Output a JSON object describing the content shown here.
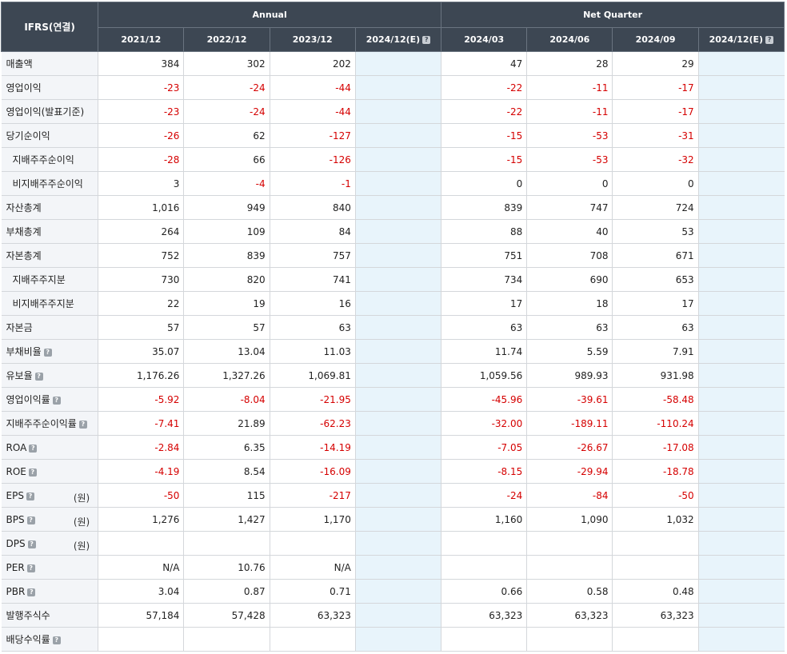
{
  "header": {
    "ifrs": "IFRS(연결)",
    "annual": "Annual",
    "quarter": "Net Quarter",
    "columns": [
      "2021/12",
      "2022/12",
      "2023/12",
      "2024/12(E)",
      "2024/03",
      "2024/06",
      "2024/09",
      "2024/12(E)"
    ]
  },
  "rows": [
    {
      "label": "매출액",
      "indent": false,
      "help": false,
      "unit": "",
      "values": [
        "384",
        "302",
        "202",
        "",
        "47",
        "28",
        "29",
        ""
      ]
    },
    {
      "label": "영업이익",
      "indent": false,
      "help": false,
      "unit": "",
      "values": [
        "-23",
        "-24",
        "-44",
        "",
        "-22",
        "-11",
        "-17",
        ""
      ]
    },
    {
      "label": "영업이익(발표기준)",
      "indent": false,
      "help": false,
      "unit": "",
      "values": [
        "-23",
        "-24",
        "-44",
        "",
        "-22",
        "-11",
        "-17",
        ""
      ]
    },
    {
      "label": "당기순이익",
      "indent": false,
      "help": false,
      "unit": "",
      "values": [
        "-26",
        "62",
        "-127",
        "",
        "-15",
        "-53",
        "-31",
        ""
      ]
    },
    {
      "label": "지배주주순이익",
      "indent": true,
      "help": false,
      "unit": "",
      "values": [
        "-28",
        "66",
        "-126",
        "",
        "-15",
        "-53",
        "-32",
        ""
      ]
    },
    {
      "label": "비지배주주순이익",
      "indent": true,
      "help": false,
      "unit": "",
      "values": [
        "3",
        "-4",
        "-1",
        "",
        "0",
        "0",
        "0",
        ""
      ]
    },
    {
      "label": "자산총계",
      "indent": false,
      "help": false,
      "unit": "",
      "values": [
        "1,016",
        "949",
        "840",
        "",
        "839",
        "747",
        "724",
        ""
      ]
    },
    {
      "label": "부채총계",
      "indent": false,
      "help": false,
      "unit": "",
      "values": [
        "264",
        "109",
        "84",
        "",
        "88",
        "40",
        "53",
        ""
      ]
    },
    {
      "label": "자본총계",
      "indent": false,
      "help": false,
      "unit": "",
      "values": [
        "752",
        "839",
        "757",
        "",
        "751",
        "708",
        "671",
        ""
      ]
    },
    {
      "label": "지배주주지분",
      "indent": true,
      "help": false,
      "unit": "",
      "values": [
        "730",
        "820",
        "741",
        "",
        "734",
        "690",
        "653",
        ""
      ]
    },
    {
      "label": "비지배주주지분",
      "indent": true,
      "help": false,
      "unit": "",
      "values": [
        "22",
        "19",
        "16",
        "",
        "17",
        "18",
        "17",
        ""
      ]
    },
    {
      "label": "자본금",
      "indent": false,
      "help": false,
      "unit": "",
      "values": [
        "57",
        "57",
        "63",
        "",
        "63",
        "63",
        "63",
        ""
      ]
    },
    {
      "label": "부채비율",
      "indent": false,
      "help": true,
      "unit": "",
      "values": [
        "35.07",
        "13.04",
        "11.03",
        "",
        "11.74",
        "5.59",
        "7.91",
        ""
      ]
    },
    {
      "label": "유보율",
      "indent": false,
      "help": true,
      "unit": "",
      "values": [
        "1,176.26",
        "1,327.26",
        "1,069.81",
        "",
        "1,059.56",
        "989.93",
        "931.98",
        ""
      ]
    },
    {
      "label": "영업이익률",
      "indent": false,
      "help": true,
      "unit": "",
      "values": [
        "-5.92",
        "-8.04",
        "-21.95",
        "",
        "-45.96",
        "-39.61",
        "-58.48",
        ""
      ]
    },
    {
      "label": "지배주주순이익률",
      "indent": false,
      "help": true,
      "unit": "",
      "values": [
        "-7.41",
        "21.89",
        "-62.23",
        "",
        "-32.00",
        "-189.11",
        "-110.24",
        ""
      ]
    },
    {
      "label": "ROA",
      "indent": false,
      "help": true,
      "unit": "",
      "values": [
        "-2.84",
        "6.35",
        "-14.19",
        "",
        "-7.05",
        "-26.67",
        "-17.08",
        ""
      ]
    },
    {
      "label": "ROE",
      "indent": false,
      "help": true,
      "unit": "",
      "values": [
        "-4.19",
        "8.54",
        "-16.09",
        "",
        "-8.15",
        "-29.94",
        "-18.78",
        ""
      ]
    },
    {
      "label": "EPS",
      "indent": false,
      "help": true,
      "unit": "(원)",
      "values": [
        "-50",
        "115",
        "-217",
        "",
        "-24",
        "-84",
        "-50",
        ""
      ]
    },
    {
      "label": "BPS",
      "indent": false,
      "help": true,
      "unit": "(원)",
      "values": [
        "1,276",
        "1,427",
        "1,170",
        "",
        "1,160",
        "1,090",
        "1,032",
        ""
      ]
    },
    {
      "label": "DPS",
      "indent": false,
      "help": true,
      "unit": "(원)",
      "values": [
        "",
        "",
        "",
        "",
        "",
        "",
        "",
        ""
      ]
    },
    {
      "label": "PER",
      "indent": false,
      "help": true,
      "unit": "",
      "values": [
        "N/A",
        "10.76",
        "N/A",
        "",
        "",
        "",
        "",
        ""
      ]
    },
    {
      "label": "PBR",
      "indent": false,
      "help": true,
      "unit": "",
      "values": [
        "3.04",
        "0.87",
        "0.71",
        "",
        "0.66",
        "0.58",
        "0.48",
        ""
      ]
    },
    {
      "label": "발행주식수",
      "indent": false,
      "help": false,
      "unit": "",
      "values": [
        "57,184",
        "57,428",
        "63,323",
        "",
        "63,323",
        "63,323",
        "63,323",
        ""
      ]
    },
    {
      "label": "배당수익률",
      "indent": false,
      "help": true,
      "unit": "",
      "values": [
        "",
        "",
        "",
        "",
        "",
        "",
        "",
        ""
      ]
    }
  ],
  "icons": {
    "help": "question-mark-icon",
    "help_glyph": "?"
  },
  "colors": {
    "header_bg": "#3d4753",
    "negative": "#d50000",
    "estimate_bg": "#e8f4fb",
    "label_bg": "#f3f5f8"
  }
}
